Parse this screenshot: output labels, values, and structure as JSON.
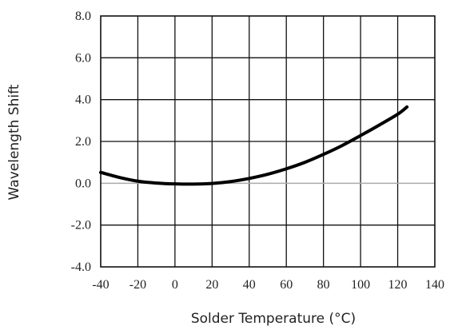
{
  "chart_data": {
    "type": "line",
    "title": "",
    "xlabel": "Solder Temperature (°C)",
    "ylabel": "Wavelength Shift",
    "xlim": [
      -40,
      140
    ],
    "ylim": [
      -4.0,
      8.0
    ],
    "xticks": [
      "-40",
      "-20",
      "0",
      "20",
      "40",
      "60",
      "80",
      "100",
      "120",
      "140"
    ],
    "yticks": [
      "8.0",
      "6.0",
      "4.0",
      "2.0",
      "0.0",
      "-2.0",
      "-4.0"
    ],
    "grid": true,
    "series_color": "#000000",
    "zero_line_color": "#aaaaaa",
    "x": [
      -40,
      -30,
      -20,
      -10,
      0,
      10,
      20,
      30,
      40,
      50,
      60,
      70,
      80,
      90,
      100,
      110,
      120,
      125
    ],
    "y": [
      0.52,
      0.28,
      0.1,
      0.01,
      -0.03,
      -0.04,
      -0.01,
      0.08,
      0.23,
      0.43,
      0.69,
      1.0,
      1.38,
      1.8,
      2.28,
      2.78,
      3.3,
      3.65
    ]
  }
}
